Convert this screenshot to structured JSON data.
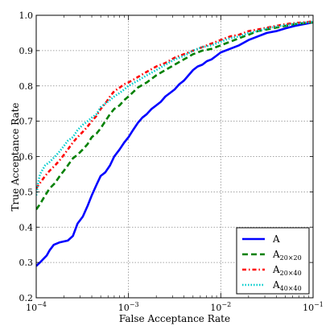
{
  "chart_data": {
    "type": "line",
    "xlabel": "False Acceptance Rate",
    "ylabel": "True Acceptance Rate",
    "xscale": "log",
    "xlim": [
      0.0001,
      0.1
    ],
    "ylim": [
      0.2,
      1.0
    ],
    "grid": true,
    "legend_position": "bottom-right",
    "x_tick_labels": [
      {
        "base": "10",
        "exp": "−4"
      },
      {
        "base": "10",
        "exp": "−3"
      },
      {
        "base": "10",
        "exp": "−2"
      },
      {
        "base": "10",
        "exp": "−1"
      }
    ],
    "y_tick_labels": [
      "0.2",
      "0.3",
      "0.4",
      "0.5",
      "0.6",
      "0.7",
      "0.8",
      "0.9",
      "1.0"
    ],
    "series": [
      {
        "name": "A",
        "name_sub": "",
        "color": "#0000ff",
        "dash": "none",
        "points": [
          [
            0.0001,
            0.29
          ],
          [
            0.00011,
            0.3
          ],
          [
            0.00013,
            0.32
          ],
          [
            0.00014,
            0.335
          ],
          [
            0.000155,
            0.35
          ],
          [
            0.00018,
            0.357
          ],
          [
            0.00022,
            0.362
          ],
          [
            0.00025,
            0.375
          ],
          [
            0.00028,
            0.41
          ],
          [
            0.00032,
            0.43
          ],
          [
            0.00036,
            0.46
          ],
          [
            0.0004,
            0.49
          ],
          [
            0.00045,
            0.52
          ],
          [
            0.0005,
            0.545
          ],
          [
            0.00056,
            0.555
          ],
          [
            0.00063,
            0.575
          ],
          [
            0.0007,
            0.6
          ],
          [
            0.0008,
            0.62
          ],
          [
            0.0009,
            0.64
          ],
          [
            0.001,
            0.655
          ],
          [
            0.00112,
            0.675
          ],
          [
            0.00126,
            0.695
          ],
          [
            0.00141,
            0.71
          ],
          [
            0.00158,
            0.72
          ],
          [
            0.00178,
            0.735
          ],
          [
            0.002,
            0.745
          ],
          [
            0.00224,
            0.755
          ],
          [
            0.00251,
            0.77
          ],
          [
            0.00282,
            0.78
          ],
          [
            0.00316,
            0.79
          ],
          [
            0.00355,
            0.805
          ],
          [
            0.00398,
            0.815
          ],
          [
            0.00447,
            0.83
          ],
          [
            0.00501,
            0.845
          ],
          [
            0.00562,
            0.855
          ],
          [
            0.00631,
            0.86
          ],
          [
            0.00708,
            0.87
          ],
          [
            0.00794,
            0.875
          ],
          [
            0.00891,
            0.885
          ],
          [
            0.01,
            0.895
          ],
          [
            0.0126,
            0.905
          ],
          [
            0.0158,
            0.915
          ],
          [
            0.02,
            0.93
          ],
          [
            0.0251,
            0.94
          ],
          [
            0.0316,
            0.95
          ],
          [
            0.0398,
            0.955
          ],
          [
            0.0501,
            0.963
          ],
          [
            0.0631,
            0.97
          ],
          [
            0.0794,
            0.975
          ],
          [
            0.1,
            0.98
          ]
        ]
      },
      {
        "name": "A",
        "name_sub": "20×20",
        "color": "#008000",
        "dash": "7,4",
        "points": [
          [
            0.0001,
            0.45
          ],
          [
            0.00011,
            0.465
          ],
          [
            0.000125,
            0.49
          ],
          [
            0.00014,
            0.51
          ],
          [
            0.00016,
            0.525
          ],
          [
            0.00018,
            0.545
          ],
          [
            0.0002,
            0.56
          ],
          [
            0.00022,
            0.575
          ],
          [
            0.00025,
            0.595
          ],
          [
            0.00028,
            0.605
          ],
          [
            0.00032,
            0.62
          ],
          [
            0.00036,
            0.635
          ],
          [
            0.0004,
            0.655
          ],
          [
            0.00045,
            0.665
          ],
          [
            0.0005,
            0.68
          ],
          [
            0.00056,
            0.7
          ],
          [
            0.00063,
            0.72
          ],
          [
            0.0007,
            0.735
          ],
          [
            0.0008,
            0.745
          ],
          [
            0.0009,
            0.76
          ],
          [
            0.001,
            0.77
          ],
          [
            0.00126,
            0.795
          ],
          [
            0.00158,
            0.81
          ],
          [
            0.002,
            0.83
          ],
          [
            0.00251,
            0.845
          ],
          [
            0.00316,
            0.86
          ],
          [
            0.00398,
            0.875
          ],
          [
            0.00501,
            0.89
          ],
          [
            0.00631,
            0.9
          ],
          [
            0.00794,
            0.905
          ],
          [
            0.01,
            0.915
          ],
          [
            0.0126,
            0.925
          ],
          [
            0.0158,
            0.935
          ],
          [
            0.02,
            0.945
          ],
          [
            0.0251,
            0.955
          ],
          [
            0.0316,
            0.96
          ],
          [
            0.0398,
            0.965
          ],
          [
            0.0501,
            0.97
          ],
          [
            0.0631,
            0.975
          ],
          [
            0.0794,
            0.978
          ],
          [
            0.1,
            0.98
          ]
        ]
      },
      {
        "name": "A",
        "name_sub": "20×40",
        "color": "#ff0000",
        "dash": "5,3,1.5,3",
        "points": [
          [
            0.0001,
            0.51
          ],
          [
            0.00011,
            0.525
          ],
          [
            0.000125,
            0.545
          ],
          [
            0.00014,
            0.56
          ],
          [
            0.00016,
            0.575
          ],
          [
            0.00018,
            0.59
          ],
          [
            0.0002,
            0.605
          ],
          [
            0.00022,
            0.62
          ],
          [
            0.00025,
            0.64
          ],
          [
            0.00028,
            0.655
          ],
          [
            0.00032,
            0.67
          ],
          [
            0.00036,
            0.685
          ],
          [
            0.0004,
            0.7
          ],
          [
            0.00045,
            0.715
          ],
          [
            0.0005,
            0.735
          ],
          [
            0.00056,
            0.75
          ],
          [
            0.00063,
            0.77
          ],
          [
            0.0007,
            0.785
          ],
          [
            0.0008,
            0.795
          ],
          [
            0.0009,
            0.805
          ],
          [
            0.001,
            0.81
          ],
          [
            0.00126,
            0.825
          ],
          [
            0.00158,
            0.84
          ],
          [
            0.002,
            0.855
          ],
          [
            0.00251,
            0.865
          ],
          [
            0.00316,
            0.88
          ],
          [
            0.00398,
            0.89
          ],
          [
            0.00501,
            0.9
          ],
          [
            0.00631,
            0.91
          ],
          [
            0.00794,
            0.92
          ],
          [
            0.01,
            0.93
          ],
          [
            0.0126,
            0.94
          ],
          [
            0.0158,
            0.945
          ],
          [
            0.02,
            0.955
          ],
          [
            0.0251,
            0.96
          ],
          [
            0.0316,
            0.965
          ],
          [
            0.0398,
            0.97
          ],
          [
            0.0501,
            0.975
          ],
          [
            0.0631,
            0.978
          ],
          [
            0.0794,
            0.98
          ],
          [
            0.1,
            0.983
          ]
        ]
      },
      {
        "name": "A",
        "name_sub": "40×40",
        "color": "#00cccc",
        "dash": "1.5,2",
        "points": [
          [
            0.0001,
            0.49
          ],
          [
            0.000105,
            0.525
          ],
          [
            0.00011,
            0.55
          ],
          [
            0.000125,
            0.575
          ],
          [
            0.00014,
            0.585
          ],
          [
            0.00016,
            0.6
          ],
          [
            0.00018,
            0.615
          ],
          [
            0.0002,
            0.63
          ],
          [
            0.00022,
            0.645
          ],
          [
            0.00025,
            0.655
          ],
          [
            0.00028,
            0.675
          ],
          [
            0.00032,
            0.69
          ],
          [
            0.00036,
            0.7
          ],
          [
            0.0004,
            0.71
          ],
          [
            0.00045,
            0.72
          ],
          [
            0.0005,
            0.74
          ],
          [
            0.00056,
            0.75
          ],
          [
            0.00063,
            0.76
          ],
          [
            0.0007,
            0.77
          ],
          [
            0.0008,
            0.78
          ],
          [
            0.0009,
            0.79
          ],
          [
            0.001,
            0.8
          ],
          [
            0.00126,
            0.815
          ],
          [
            0.00158,
            0.83
          ],
          [
            0.002,
            0.845
          ],
          [
            0.00251,
            0.86
          ],
          [
            0.00316,
            0.875
          ],
          [
            0.00398,
            0.885
          ],
          [
            0.00501,
            0.9
          ],
          [
            0.00631,
            0.91
          ],
          [
            0.00794,
            0.915
          ],
          [
            0.01,
            0.925
          ],
          [
            0.0126,
            0.935
          ],
          [
            0.0158,
            0.94
          ],
          [
            0.02,
            0.95
          ],
          [
            0.0251,
            0.955
          ],
          [
            0.0316,
            0.963
          ],
          [
            0.0398,
            0.968
          ],
          [
            0.0501,
            0.972
          ],
          [
            0.0631,
            0.976
          ],
          [
            0.0794,
            0.979
          ],
          [
            0.1,
            0.982
          ]
        ]
      }
    ]
  }
}
